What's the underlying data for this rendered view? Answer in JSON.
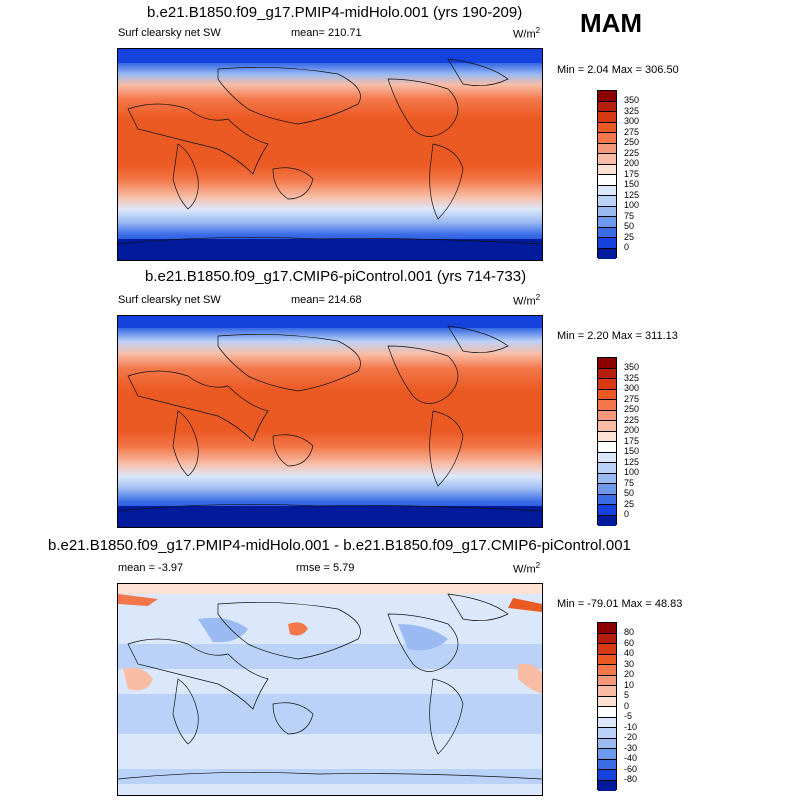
{
  "season": "MAM",
  "panels": [
    {
      "title": "b.e21.B1850.f09_g17.PMIP4-midHolo.001 (yrs 190-209)",
      "left_label": "Surf clearsky net SW",
      "center_label": "mean= 210.71",
      "units_base": "W/m",
      "units_exp": "2",
      "minmax": "Min =   2.04 Max = 306.50",
      "levels": [
        "350",
        "325",
        "300",
        "275",
        "250",
        "225",
        "200",
        "175",
        "150",
        "125",
        "100",
        "75",
        "50",
        "25",
        "0"
      ],
      "colors": [
        "#8b0000",
        "#b51d0c",
        "#d63a13",
        "#ec5a24",
        "#f3774a",
        "#f6987a",
        "#f9bda6",
        "#fde2d3",
        "#ffffff",
        "#dbe8fb",
        "#bad2f7",
        "#9bbaf2",
        "#6f99ec",
        "#3a6ce6",
        "#1542dc",
        "#001a9c"
      ]
    },
    {
      "title": "b.e21.B1850.f09_g17.CMIP6-piControl.001 (yrs 714-733)",
      "left_label": "Surf clearsky net SW",
      "center_label": "mean= 214.68",
      "units_base": "W/m",
      "units_exp": "2",
      "minmax": "Min =   2.20 Max = 311.13",
      "levels": [
        "350",
        "325",
        "300",
        "275",
        "250",
        "225",
        "200",
        "175",
        "150",
        "125",
        "100",
        "75",
        "50",
        "25",
        "0"
      ],
      "colors": [
        "#8b0000",
        "#b51d0c",
        "#d63a13",
        "#ec5a24",
        "#f3774a",
        "#f6987a",
        "#f9bda6",
        "#fde2d3",
        "#ffffff",
        "#dbe8fb",
        "#bad2f7",
        "#9bbaf2",
        "#6f99ec",
        "#3a6ce6",
        "#1542dc",
        "#001a9c"
      ]
    },
    {
      "title": "b.e21.B1850.f09_g17.PMIP4-midHolo.001 - b.e21.B1850.f09_g17.CMIP6-piControl.001",
      "left_label": "mean =  -3.97",
      "center_label": "rmse =   5.79",
      "units_base": "W/m",
      "units_exp": "2",
      "minmax": "Min = -79.01 Max =  48.83",
      "levels": [
        "80",
        "60",
        "40",
        "30",
        "20",
        "10",
        "5",
        "0",
        "-5",
        "-10",
        "-20",
        "-30",
        "-40",
        "-60",
        "-80"
      ],
      "colors": [
        "#8b0000",
        "#b51d0c",
        "#d63a13",
        "#ec5a24",
        "#f3774a",
        "#f6987a",
        "#f9bda6",
        "#fde2d3",
        "#ffffff",
        "#dbe8fb",
        "#bad2f7",
        "#9bbaf2",
        "#6f99ec",
        "#3a6ce6",
        "#1542dc",
        "#001a9c"
      ]
    }
  ]
}
